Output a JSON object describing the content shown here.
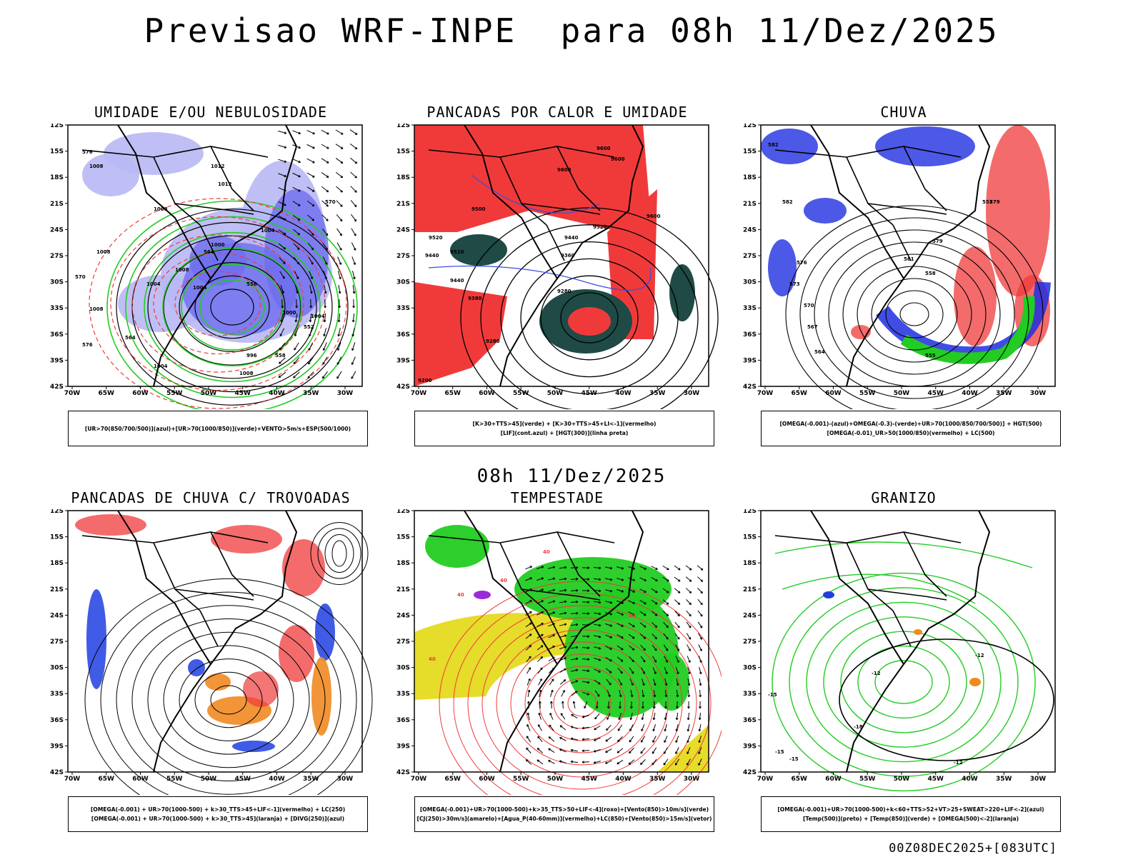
{
  "header": {
    "title": "Previsao WRF-INPE  para 08h 11/Dez/2025"
  },
  "mid_title": "08h 11/Dez/2025",
  "footer": "00Z08DEC2025+[083UTC]",
  "colors": {
    "blue": "#6e6ef0",
    "lightblue": "#b8b8f5",
    "green": "#22cc22",
    "red": "#f03a3a",
    "darkteal": "#1f4a46",
    "orange": "#f08a22",
    "yellow": "#e6dc2a",
    "purple": "#9a2ad8"
  },
  "chart_data": [
    {
      "type": "map",
      "title": "UMIDADE E/OU NEBULOSIDADE",
      "legend": [
        "[UR>70(850/700/500)](azul)+[UR>70(1000/850)](verde)+VENTO>5m/s+ESP(500/1000)"
      ],
      "lat_ticks": [
        "12S",
        "15S",
        "18S",
        "21S",
        "24S",
        "27S",
        "30S",
        "33S",
        "36S",
        "39S",
        "42S"
      ],
      "lon_ticks": [
        "70W",
        "65W",
        "60W",
        "55W",
        "50W",
        "45W",
        "40W",
        "35W",
        "30W"
      ],
      "isolines": [
        "1008",
        "1012",
        "1008",
        "1012",
        "1008",
        "1004",
        "1004",
        "1008",
        "1008",
        "1004",
        "1000",
        "996",
        "1004",
        "1008",
        "1004",
        "1000",
        "576",
        "570",
        "564",
        "558",
        "552",
        "576",
        "558",
        "570",
        "564"
      ]
    },
    {
      "type": "map",
      "title": "PANCADAS POR CALOR E UMIDADE",
      "legend": [
        "[K>30+TTS>45](verde) + [K>30+TTS>45+LI<-1](vermelho)",
        "[LIF](cont.azul) + [HGT(300)](linha preta)"
      ],
      "lat_ticks": [
        "12S",
        "15S",
        "18S",
        "21S",
        "24S",
        "27S",
        "30S",
        "33S",
        "36S",
        "39S",
        "42S"
      ],
      "lon_ticks": [
        "70W",
        "65W",
        "60W",
        "55W",
        "50W",
        "45W",
        "40W",
        "35W",
        "30W"
      ],
      "isolines": [
        "9600",
        "9600",
        "9600",
        "9500",
        "9520",
        "9520",
        "9600",
        "9440",
        "9520",
        "9440",
        "9380",
        "9440",
        "9360",
        "9280",
        "9280",
        "9200"
      ]
    },
    {
      "type": "map",
      "title": "CHUVA",
      "legend": [
        "[OMEGA(-0.001)-(azul)+OMEGA(-0.3)-(verde)+UR>70(1000/850/700/500)] + HGT(500)",
        "[OMEGA(-0.01)_UR>50(1000/850)(vermelho) + LC(500)"
      ],
      "lat_ticks": [
        "12S",
        "15S",
        "18S",
        "21S",
        "24S",
        "27S",
        "30S",
        "33S",
        "36S",
        "39S",
        "42S"
      ],
      "lon_ticks": [
        "70W",
        "65W",
        "60W",
        "55W",
        "50W",
        "45W",
        "40W",
        "35W",
        "30W"
      ],
      "isolines": [
        "582",
        "582",
        "579",
        "576",
        "573",
        "579",
        "570",
        "567",
        "564",
        "561",
        "558",
        "555",
        "552"
      ]
    },
    {
      "type": "map",
      "title": "PANCADAS DE CHUVA C/ TROVOADAS",
      "legend": [
        "[OMEGA(-0.001) + UR>70(1000-500) + k>30_TTS>45+LIF<-1](vermelho) + LC(250)",
        "[OMEGA(-0.001) + UR>70(1000-500) + k>30_TTS>45](laranja) + [DIVG(250)](azul)"
      ],
      "lat_ticks": [
        "12S",
        "15S",
        "18S",
        "21S",
        "24S",
        "27S",
        "30S",
        "33S",
        "36S",
        "39S",
        "42S"
      ],
      "lon_ticks": [
        "70W",
        "65W",
        "60W",
        "55W",
        "50W",
        "45W",
        "40W",
        "35W",
        "30W"
      ],
      "isolines": []
    },
    {
      "type": "map",
      "title": "TEMPESTADE",
      "legend": [
        "[OMEGA(-0.001)+UR>70(1000-500)+k>35_TTS>50+LIF<-4](roxo)+[Vento(850)>10m/s](verde)",
        "[CJ(250)>30m/s](amarelo)+[Agua_P(40-60mm)](vermelho)+LC(850)+[Vento(850)>15m/s](vetor)"
      ],
      "lat_ticks": [
        "12S",
        "15S",
        "18S",
        "21S",
        "24S",
        "27S",
        "30S",
        "33S",
        "36S",
        "39S",
        "42S"
      ],
      "lon_ticks": [
        "70W",
        "65W",
        "60W",
        "55W",
        "50W",
        "45W",
        "40W",
        "35W",
        "30W"
      ],
      "isolines": [
        "40",
        "40",
        "40",
        "40",
        "40"
      ]
    },
    {
      "type": "map",
      "title": "GRANIZO",
      "legend": [
        "[OMEGA(-0.001)+UR>70(1000-500)+k<60+TTS>52+VT>25+SWEAT>220+LIF<-2](azul)",
        "[Temp(500)](preto) + [Temp(850)](verde) + [OMEGA(500)<-2](laranja)"
      ],
      "lat_ticks": [
        "12S",
        "15S",
        "18S",
        "21S",
        "24S",
        "27S",
        "30S",
        "33S",
        "36S",
        "39S",
        "42S"
      ],
      "lon_ticks": [
        "70W",
        "65W",
        "60W",
        "55W",
        "50W",
        "45W",
        "40W",
        "35W",
        "30W"
      ],
      "isolines": [
        "-12",
        "-15",
        "-12",
        "-15",
        "-18",
        "-12",
        "-15"
      ]
    }
  ]
}
